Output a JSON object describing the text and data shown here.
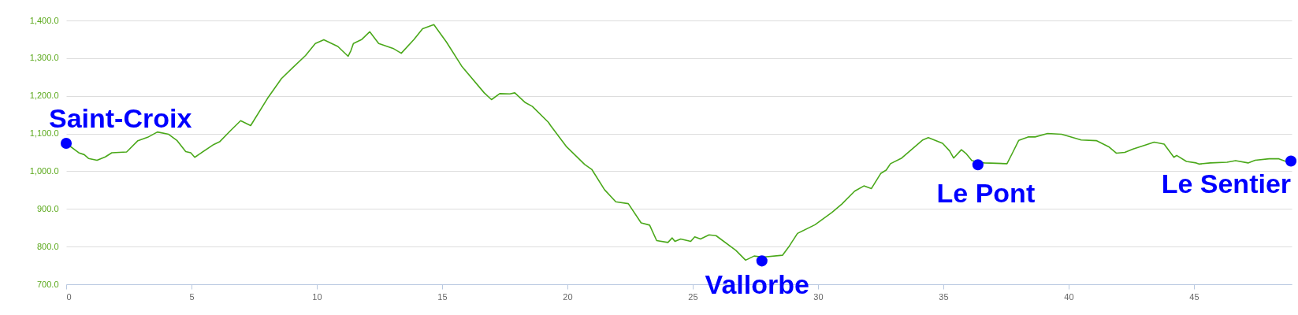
{
  "chart_data": {
    "type": "line",
    "xlim": [
      0,
      48.9
    ],
    "xticks": [
      0,
      5,
      10,
      15,
      20,
      25,
      30,
      35,
      40,
      45
    ],
    "ylim": [
      700,
      1400
    ],
    "yticks": [
      {
        "value": 700,
        "label": "700.0"
      },
      {
        "value": 800,
        "label": "800.0"
      },
      {
        "value": 900,
        "label": "900.0"
      },
      {
        "value": 1000,
        "label": "1,000.0"
      },
      {
        "value": 1100,
        "label": "1,100.0"
      },
      {
        "value": 1200,
        "label": "1,200.0"
      },
      {
        "value": 1300,
        "label": "1,300.0"
      },
      {
        "value": 1400,
        "label": "1,400.0"
      }
    ],
    "grid": "y",
    "line_style": "solid",
    "series": [
      {
        "color": "#4aa81a",
        "x": [
          0,
          0.5,
          0.72,
          0.89,
          1.23,
          1.56,
          1.82,
          2.41,
          2.86,
          3.25,
          3.64,
          4.09,
          4.43,
          4.77,
          4.97,
          5.13,
          5.33,
          5.89,
          6.12,
          6.56,
          6.96,
          7.36,
          8.03,
          8.59,
          9.04,
          9.55,
          9.94,
          10.28,
          10.84,
          11.25,
          11.36,
          11.46,
          11.8,
          12.11,
          12.47,
          13.04,
          13.37,
          13.88,
          14.22,
          14.67,
          15.17,
          15.78,
          16.68,
          16.97,
          17.3,
          17.7,
          17.9,
          18.32,
          18.6,
          19.24,
          19.33,
          19.95,
          20.69,
          20.97,
          21.48,
          21.93,
          22.43,
          22.94,
          23.28,
          23.56,
          24.01,
          24.18,
          24.29,
          24.52,
          24.92,
          25.08,
          25.31,
          25.65,
          25.93,
          26.72,
          27.11,
          27.45,
          27.79,
          28.58,
          28.86,
          29.18,
          29.88,
          30.56,
          30.95,
          31.46,
          31.83,
          32.13,
          32.5,
          32.72,
          32.89,
          33.34,
          34.18,
          34.4,
          34.97,
          35.25,
          35.41,
          35.72,
          35.92,
          36.14,
          36.64,
          37.54,
          37.77,
          38.01,
          38.38,
          38.66,
          39.16,
          39.72,
          39.94,
          40.5,
          41.12,
          41.62,
          41.9,
          42.24,
          42.57,
          43.08,
          43.41,
          43.81,
          44.2,
          44.31,
          44.7,
          45.09,
          45.2,
          45.65,
          46.32,
          46.66,
          47.16,
          47.44,
          48.0,
          48.39,
          48.67,
          48.87
        ],
        "values": [
          1074,
          1049,
          1044,
          1034,
          1029,
          1038,
          1049,
          1051,
          1081,
          1090,
          1104,
          1098,
          1081,
          1052,
          1049,
          1037,
          1046,
          1071,
          1078,
          1108,
          1134,
          1121,
          1193,
          1246,
          1275,
          1307,
          1339,
          1349,
          1331,
          1305,
          1320,
          1339,
          1350,
          1370,
          1339,
          1326,
          1313,
          1350,
          1378,
          1389,
          1343,
          1279,
          1208,
          1190,
          1206,
          1205,
          1208,
          1182,
          1172,
          1130,
          1121,
          1066,
          1018,
          1005,
          951,
          919,
          914,
          863,
          857,
          816,
          811,
          823,
          814,
          820,
          814,
          826,
          820,
          831,
          829,
          790,
          764,
          775,
          772,
          777,
          802,
          835,
          858,
          891,
          913,
          947,
          961,
          954,
          994,
          1003,
          1020,
          1035,
          1083,
          1089,
          1074,
          1054,
          1035,
          1057,
          1046,
          1028,
          1022,
          1020,
          1050,
          1082,
          1091,
          1091,
          1100,
          1098,
          1094,
          1083,
          1081,
          1064,
          1048,
          1050,
          1059,
          1070,
          1077,
          1072,
          1037,
          1042,
          1026,
          1022,
          1019,
          1022,
          1024,
          1028,
          1022,
          1029,
          1033,
          1033,
          1026,
          1027
        ]
      },
      {
        "type": "scatter",
        "marker": "circle",
        "color": "#0000ff",
        "x": [
          0,
          27.76,
          36.38,
          48.87
        ],
        "values": [
          1074,
          762,
          1017,
          1027
        ]
      }
    ],
    "annotations": [
      {
        "text": "Saint-Croix",
        "x": 0,
        "y": 1074
      },
      {
        "text": "Vallorbe",
        "x": 27.76,
        "y": 762
      },
      {
        "text": "Le Pont",
        "x": 36.38,
        "y": 1017
      },
      {
        "text": "Le Sentier",
        "x": 48.87,
        "y": 1027
      }
    ]
  }
}
